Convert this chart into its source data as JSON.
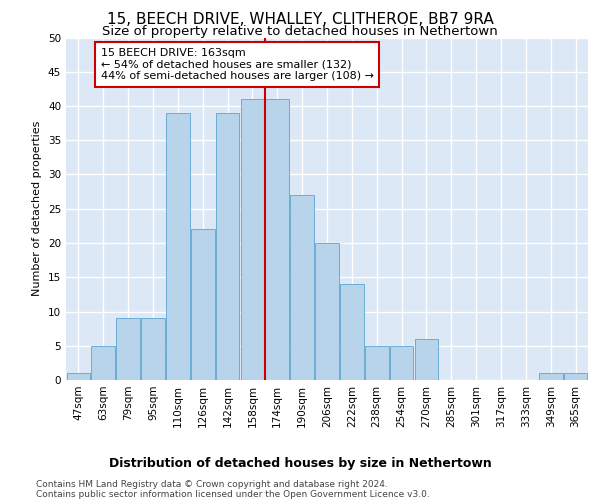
{
  "title": "15, BEECH DRIVE, WHALLEY, CLITHEROE, BB7 9RA",
  "subtitle": "Size of property relative to detached houses in Nethertown",
  "xlabel": "Distribution of detached houses by size in Nethertown",
  "ylabel": "Number of detached properties",
  "categories": [
    "47sqm",
    "63sqm",
    "79sqm",
    "95sqm",
    "110sqm",
    "126sqm",
    "142sqm",
    "158sqm",
    "174sqm",
    "190sqm",
    "206sqm",
    "222sqm",
    "238sqm",
    "254sqm",
    "270sqm",
    "285sqm",
    "301sqm",
    "317sqm",
    "333sqm",
    "349sqm",
    "365sqm"
  ],
  "values": [
    1,
    5,
    9,
    9,
    39,
    22,
    39,
    41,
    41,
    27,
    20,
    14,
    5,
    5,
    6,
    0,
    0,
    0,
    0,
    1,
    1
  ],
  "bar_color": "#b8d4ea",
  "bar_edge_color": "#6aaed6",
  "vline_color": "#cc0000",
  "annotation_text": "15 BEECH DRIVE: 163sqm\n← 54% of detached houses are smaller (132)\n44% of semi-detached houses are larger (108) →",
  "annotation_box_color": "#ffffff",
  "annotation_box_edge": "#cc0000",
  "ylim": [
    0,
    50
  ],
  "yticks": [
    0,
    5,
    10,
    15,
    20,
    25,
    30,
    35,
    40,
    45,
    50
  ],
  "background_color": "#dce8f5",
  "grid_color": "#ffffff",
  "fig_background": "#ffffff",
  "footer_line1": "Contains HM Land Registry data © Crown copyright and database right 2024.",
  "footer_line2": "Contains public sector information licensed under the Open Government Licence v3.0.",
  "title_fontsize": 11,
  "subtitle_fontsize": 9.5,
  "xlabel_fontsize": 9,
  "ylabel_fontsize": 8,
  "tick_fontsize": 7.5,
  "footer_fontsize": 6.5,
  "annot_fontsize": 8
}
